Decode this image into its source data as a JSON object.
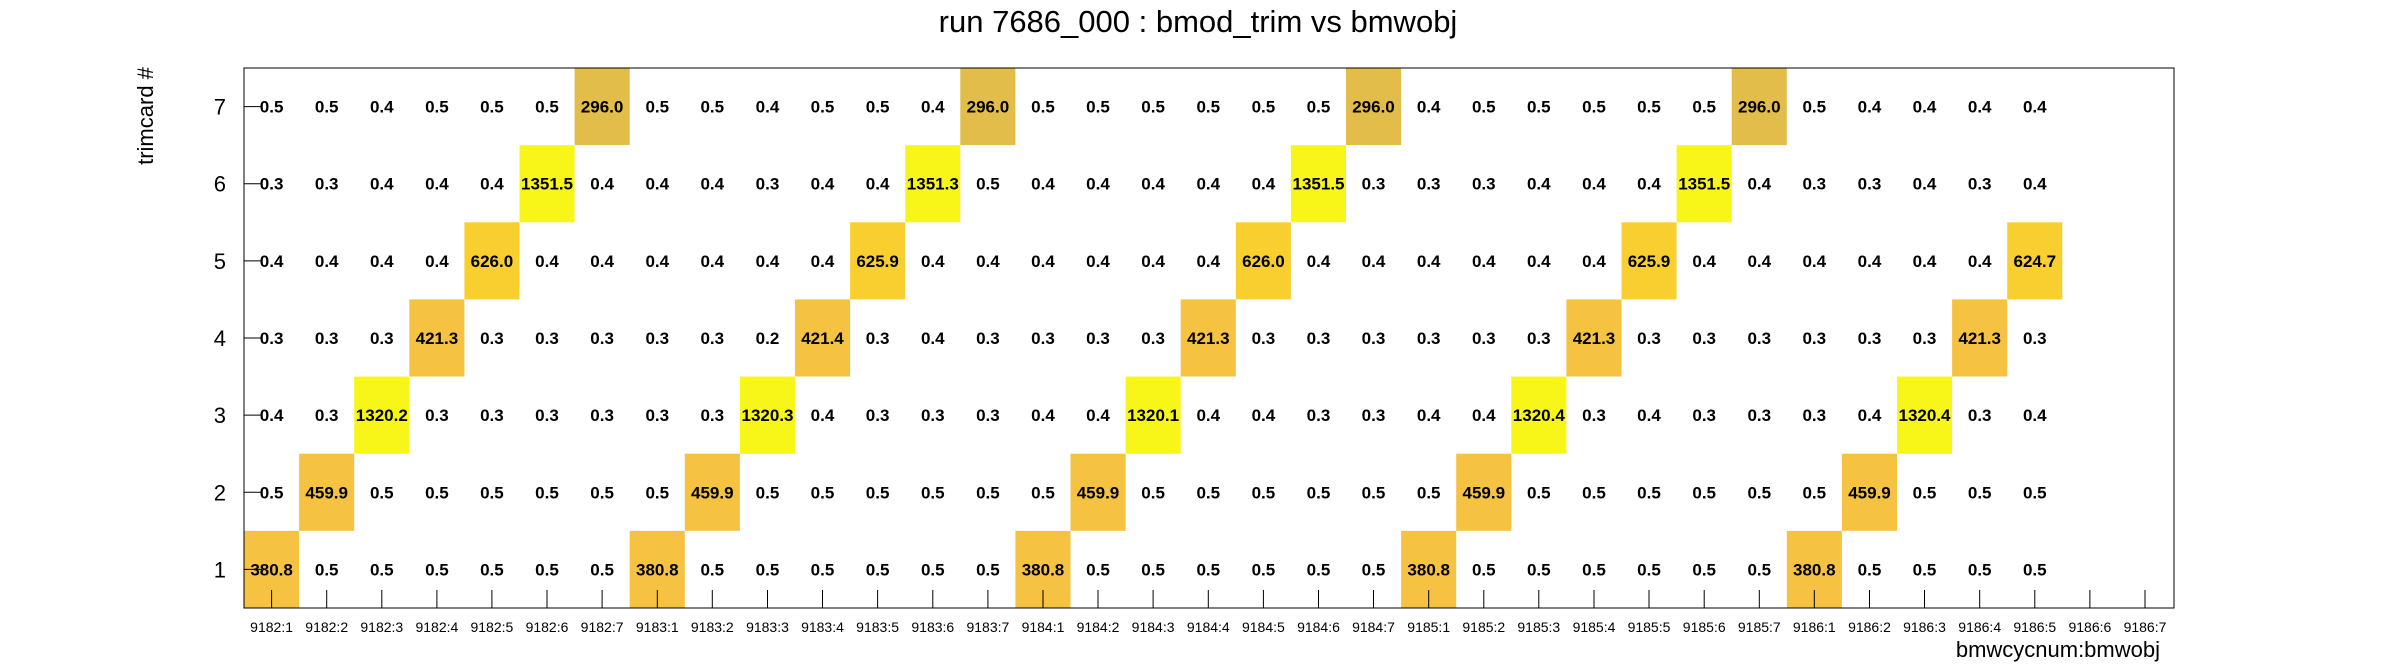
{
  "chart_data": {
    "type": "heatmap",
    "title": "run 7686_000 : bmod_trim vs bmwobj",
    "xlabel": "bmwcycnum:bmwobj",
    "ylabel": "trimcard #",
    "x_categories": [
      "9182:1",
      "9182:2",
      "9182:3",
      "9182:4",
      "9182:5",
      "9182:6",
      "9182:7",
      "9183:1",
      "9183:2",
      "9183:3",
      "9183:4",
      "9183:5",
      "9183:6",
      "9183:7",
      "9184:1",
      "9184:2",
      "9184:3",
      "9184:4",
      "9184:5",
      "9184:6",
      "9184:7",
      "9185:1",
      "9185:2",
      "9185:3",
      "9185:4",
      "9185:5",
      "9185:6",
      "9185:7",
      "9186:1",
      "9186:2",
      "9186:3",
      "9186:4",
      "9186:5",
      "9186:6",
      "9186:7"
    ],
    "y_categories": [
      "1",
      "2",
      "3",
      "4",
      "5",
      "6",
      "7"
    ],
    "rows": [
      {
        "y": "1",
        "values": [
          "380.8",
          "0.5",
          "0.5",
          "0.5",
          "0.5",
          "0.5",
          "0.5",
          "380.8",
          "0.5",
          "0.5",
          "0.5",
          "0.5",
          "0.5",
          "0.5",
          "380.8",
          "0.5",
          "0.5",
          "0.5",
          "0.5",
          "0.5",
          "0.5",
          "380.8",
          "0.5",
          "0.5",
          "0.5",
          "0.5",
          "0.5",
          "0.5",
          "380.8",
          "0.5",
          "0.5",
          "0.5",
          "0.5",
          null,
          null
        ]
      },
      {
        "y": "2",
        "values": [
          "0.5",
          "459.9",
          "0.5",
          "0.5",
          "0.5",
          "0.5",
          "0.5",
          "0.5",
          "459.9",
          "0.5",
          "0.5",
          "0.5",
          "0.5",
          "0.5",
          "0.5",
          "459.9",
          "0.5",
          "0.5",
          "0.5",
          "0.5",
          "0.5",
          "0.5",
          "459.9",
          "0.5",
          "0.5",
          "0.5",
          "0.5",
          "0.5",
          "0.5",
          "459.9",
          "0.5",
          "0.5",
          "0.5",
          null,
          null
        ]
      },
      {
        "y": "3",
        "values": [
          "0.4",
          "0.3",
          "1320.2",
          "0.3",
          "0.3",
          "0.3",
          "0.3",
          "0.3",
          "0.3",
          "1320.3",
          "0.4",
          "0.3",
          "0.3",
          "0.3",
          "0.4",
          "0.4",
          "1320.1",
          "0.4",
          "0.4",
          "0.3",
          "0.3",
          "0.4",
          "0.4",
          "1320.4",
          "0.3",
          "0.4",
          "0.3",
          "0.3",
          "0.3",
          "0.4",
          "1320.4",
          "0.3",
          "0.4",
          null,
          null
        ]
      },
      {
        "y": "4",
        "values": [
          "0.3",
          "0.3",
          "0.3",
          "421.3",
          "0.3",
          "0.3",
          "0.3",
          "0.3",
          "0.3",
          "0.2",
          "421.4",
          "0.3",
          "0.4",
          "0.3",
          "0.3",
          "0.3",
          "0.3",
          "421.3",
          "0.3",
          "0.3",
          "0.3",
          "0.3",
          "0.3",
          "0.3",
          "421.3",
          "0.3",
          "0.3",
          "0.3",
          "0.3",
          "0.3",
          "0.3",
          "421.3",
          "0.3",
          null,
          null
        ]
      },
      {
        "y": "5",
        "values": [
          "0.4",
          "0.4",
          "0.4",
          "0.4",
          "626.0",
          "0.4",
          "0.4",
          "0.4",
          "0.4",
          "0.4",
          "0.4",
          "625.9",
          "0.4",
          "0.4",
          "0.4",
          "0.4",
          "0.4",
          "0.4",
          "626.0",
          "0.4",
          "0.4",
          "0.4",
          "0.4",
          "0.4",
          "0.4",
          "625.9",
          "0.4",
          "0.4",
          "0.4",
          "0.4",
          "0.4",
          "0.4",
          "624.7",
          null,
          null
        ]
      },
      {
        "y": "6",
        "values": [
          "0.3",
          "0.3",
          "0.4",
          "0.4",
          "0.4",
          "1351.5",
          "0.4",
          "0.4",
          "0.4",
          "0.3",
          "0.4",
          "0.4",
          "1351.3",
          "0.5",
          "0.4",
          "0.4",
          "0.4",
          "0.4",
          "0.4",
          "1351.5",
          "0.3",
          "0.3",
          "0.3",
          "0.4",
          "0.4",
          "0.4",
          "1351.5",
          "0.4",
          "0.3",
          "0.3",
          "0.4",
          "0.3",
          "0.4",
          null,
          null
        ]
      },
      {
        "y": "7",
        "values": [
          "0.5",
          "0.5",
          "0.4",
          "0.5",
          "0.5",
          "0.5",
          "296.0",
          "0.5",
          "0.5",
          "0.4",
          "0.5",
          "0.5",
          "0.4",
          "296.0",
          "0.5",
          "0.5",
          "0.5",
          "0.5",
          "0.5",
          "0.5",
          "296.0",
          "0.4",
          "0.5",
          "0.5",
          "0.5",
          "0.5",
          "0.5",
          "296.0",
          "0.5",
          "0.4",
          "0.4",
          "0.4",
          "0.4",
          null,
          null
        ]
      }
    ],
    "colors": {
      "low": "#f5c242",
      "mid": "#f9cf30",
      "high": "#f8f618",
      "lowest": "#e2bd4a"
    }
  }
}
